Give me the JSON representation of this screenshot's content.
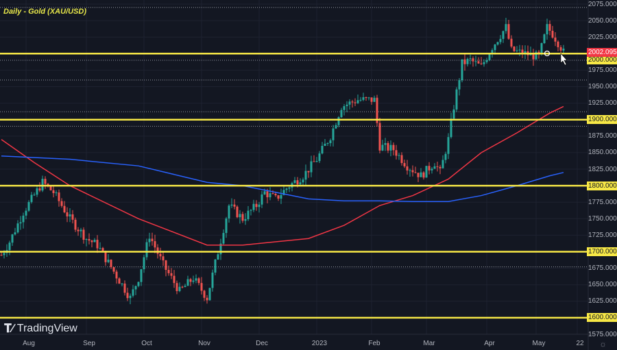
{
  "title": "Daily - Gold (XAU/USD)",
  "brand": "TradingView",
  "icons": {
    "settings": "gear-icon",
    "cursor": "arrow-cursor-icon",
    "crosshair": "circle-marker-icon"
  },
  "colors": {
    "up": "#26a69a",
    "down": "#ef5350",
    "ma_red": "#f23645",
    "ma_blue": "#2962ff",
    "level": "#f7e846",
    "bg": "#131722"
  },
  "chart_data": {
    "type": "candlestick",
    "title": "Daily - Gold (XAU/USD)",
    "ylim": [
      1565,
      2080
    ],
    "price_ticks": [
      "2075.000",
      "2050.000",
      "2025.000",
      "1975.000",
      "1950.000",
      "1925.000",
      "1875.000",
      "1850.000",
      "1825.000",
      "1775.000",
      "1750.000",
      "1725.000",
      "1675.000",
      "1650.000",
      "1625.000",
      "1575.000"
    ],
    "price_tick_values": [
      2075,
      2050,
      2025,
      1975,
      1950,
      1925,
      1875,
      1850,
      1825,
      1775,
      1750,
      1725,
      1675,
      1650,
      1625,
      1575
    ],
    "highlight_levels": [
      {
        "value": 2000,
        "label": "2000.000"
      },
      {
        "value": 1900,
        "label": "1900.000"
      },
      {
        "value": 1800,
        "label": "1800.000"
      },
      {
        "value": 1700,
        "label": "1700.000"
      },
      {
        "value": 1600,
        "label": "1600.000"
      }
    ],
    "current_price": {
      "value": 2002.095,
      "label": "2002.095"
    },
    "dotted_levels": [
      2070,
      1990,
      1960,
      1912,
      1890,
      1677
    ],
    "x_ticks": [
      {
        "label": "Aug",
        "day": 9
      },
      {
        "label": "Sep",
        "day": 31
      },
      {
        "label": "Oct",
        "day": 52
      },
      {
        "label": "Nov",
        "day": 73
      },
      {
        "label": "Dec",
        "day": 94
      },
      {
        "label": "2023",
        "day": 115
      },
      {
        "label": "Feb",
        "day": 135
      },
      {
        "label": "Mar",
        "day": 155
      },
      {
        "label": "Apr",
        "day": 177
      },
      {
        "label": "May",
        "day": 195
      },
      {
        "label": "22",
        "day": 210
      }
    ],
    "close_anchors": [
      [
        0,
        1695
      ],
      [
        3,
        1715
      ],
      [
        8,
        1760
      ],
      [
        15,
        1805
      ],
      [
        19,
        1790
      ],
      [
        25,
        1750
      ],
      [
        31,
        1720
      ],
      [
        35,
        1710
      ],
      [
        41,
        1670
      ],
      [
        47,
        1630
      ],
      [
        50,
        1660
      ],
      [
        54,
        1725
      ],
      [
        59,
        1680
      ],
      [
        65,
        1640
      ],
      [
        70,
        1660
      ],
      [
        75,
        1630
      ],
      [
        79,
        1700
      ],
      [
        83,
        1770
      ],
      [
        88,
        1750
      ],
      [
        93,
        1770
      ],
      [
        96,
        1790
      ],
      [
        100,
        1780
      ],
      [
        105,
        1800
      ],
      [
        110,
        1815
      ],
      [
        115,
        1840
      ],
      [
        120,
        1875
      ],
      [
        124,
        1920
      ],
      [
        130,
        1930
      ],
      [
        136,
        1930
      ],
      [
        138,
        1860
      ],
      [
        143,
        1855
      ],
      [
        148,
        1830
      ],
      [
        153,
        1815
      ],
      [
        158,
        1835
      ],
      [
        160,
        1820
      ],
      [
        163,
        1870
      ],
      [
        165,
        1920
      ],
      [
        168,
        1985
      ],
      [
        171,
        1990
      ],
      [
        175,
        1980
      ],
      [
        179,
        2010
      ],
      [
        184,
        2040
      ],
      [
        186,
        2005
      ],
      [
        191,
        2000
      ],
      [
        196,
        1995
      ],
      [
        199,
        2040
      ],
      [
        201,
        2030
      ],
      [
        204,
        2010
      ],
      [
        205,
        2002
      ]
    ],
    "series": [
      {
        "name": "MA red",
        "points": [
          [
            0,
            1870
          ],
          [
            12,
            1835
          ],
          [
            25,
            1800
          ],
          [
            50,
            1750
          ],
          [
            75,
            1710
          ],
          [
            88,
            1710
          ],
          [
            100,
            1715
          ],
          [
            112,
            1720
          ],
          [
            125,
            1740
          ],
          [
            138,
            1770
          ],
          [
            150,
            1785
          ],
          [
            163,
            1810
          ],
          [
            175,
            1850
          ],
          [
            188,
            1880
          ],
          [
            200,
            1910
          ],
          [
            205,
            1920
          ]
        ]
      },
      {
        "name": "MA blue",
        "points": [
          [
            0,
            1845
          ],
          [
            25,
            1840
          ],
          [
            50,
            1830
          ],
          [
            75,
            1805
          ],
          [
            88,
            1800
          ],
          [
            100,
            1790
          ],
          [
            112,
            1780
          ],
          [
            125,
            1777
          ],
          [
            138,
            1777
          ],
          [
            150,
            1776
          ],
          [
            163,
            1776
          ],
          [
            175,
            1785
          ],
          [
            188,
            1800
          ],
          [
            200,
            1815
          ],
          [
            205,
            1820
          ]
        ]
      }
    ]
  }
}
